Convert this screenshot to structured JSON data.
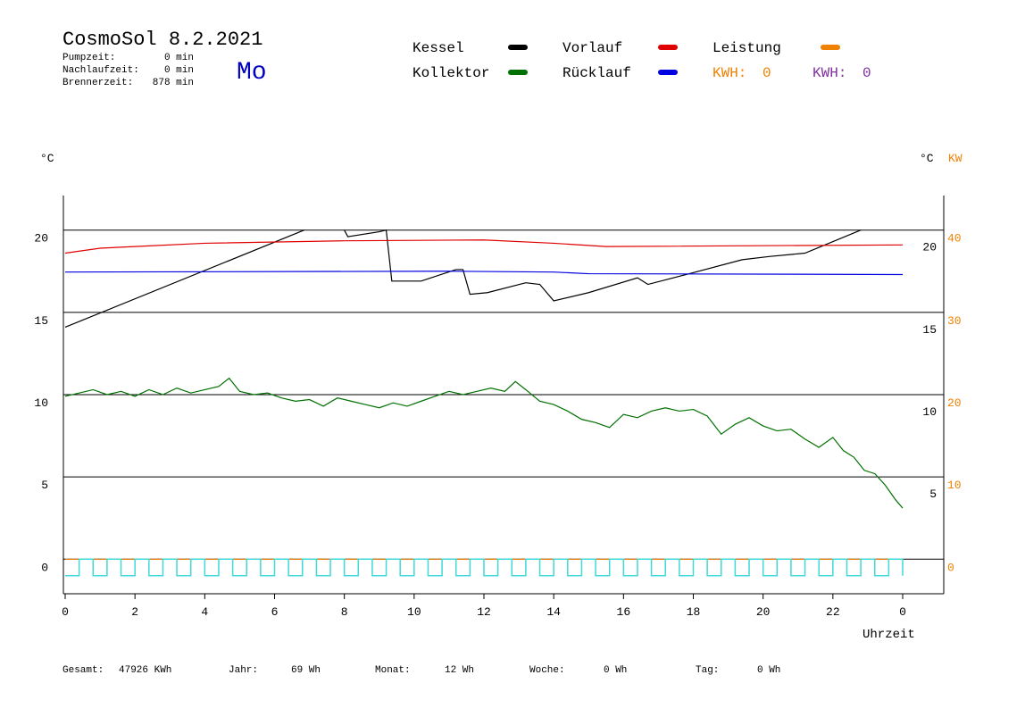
{
  "header": {
    "title": "CosmoSol 8.2.2021",
    "stats": [
      {
        "label": "Pumpzeit:",
        "value": "0 min"
      },
      {
        "label": "Nachlaufzeit:",
        "value": "0 min"
      },
      {
        "label": "Brennerzeit:",
        "value": "878 min"
      }
    ],
    "weekday": "Mo",
    "kwh": [
      {
        "label": "KWH:",
        "value": 0,
        "color": "#f08000"
      },
      {
        "label": "KWH:",
        "value": 0,
        "color": "#8030a0"
      }
    ]
  },
  "chart_data": {
    "type": "line",
    "y_label": "°C",
    "y2_label_unit": "°C",
    "y2_label": "KW",
    "x_label": "Uhrzeit",
    "xlim": [
      0,
      24
    ],
    "xticks": [
      0,
      2,
      4,
      6,
      8,
      10,
      12,
      14,
      16,
      18,
      20,
      22,
      {
        "value": 24,
        "label": "0"
      }
    ],
    "ylim": [
      -2.1,
      22.1
    ],
    "yticks": [
      0,
      5,
      10,
      15,
      20
    ],
    "yticks_right": [
      20,
      15,
      10,
      5
    ],
    "y2lim": [
      -4.2,
      44.2
    ],
    "y2ticks": [
      0,
      10,
      20,
      30,
      40
    ],
    "y2color": "#f08000",
    "grid": true,
    "series": [
      {
        "name": "Kessel",
        "color": "#000000",
        "x": [
          0,
          6.85,
          7.5,
          8,
          8.1,
          9,
          9.2,
          9.36,
          10.2,
          11.2,
          11.4,
          11.6,
          12.1,
          13.2,
          13.6,
          14,
          15,
          16.4,
          16.7,
          17.8,
          19.4,
          20.2,
          21.2,
          22.8
        ],
        "values": [
          14.1,
          20,
          null,
          20,
          19.6,
          19.9,
          20,
          16.9,
          16.9,
          17.6,
          17.6,
          16.1,
          16.2,
          16.8,
          16.7,
          15.7,
          16.2,
          17.1,
          16.7,
          17.3,
          18.2,
          18.4,
          18.6,
          20
        ]
      },
      {
        "name": "Kollektor",
        "color": "#007000",
        "x": [
          0,
          0.4,
          0.8,
          1.2,
          1.6,
          2,
          2.4,
          2.8,
          3.2,
          3.6,
          4,
          4.4,
          4.7,
          5,
          5.4,
          5.8,
          6.2,
          6.6,
          7,
          7.4,
          7.8,
          8.2,
          8.6,
          9,
          9.4,
          9.8,
          10.2,
          10.6,
          11,
          11.4,
          11.8,
          12.2,
          12.6,
          12.9,
          13.2,
          13.6,
          14,
          14.4,
          14.8,
          15.2,
          15.6,
          16,
          16.4,
          16.8,
          17.2,
          17.6,
          18,
          18.4,
          18.8,
          19.2,
          19.6,
          20,
          20.4,
          20.8,
          21.2,
          21.6,
          22,
          22.3,
          22.6,
          22.9,
          23.2,
          23.5,
          23.8,
          24
        ],
        "values": [
          9.9,
          10.1,
          10.3,
          10.0,
          10.2,
          9.9,
          10.3,
          10.0,
          10.4,
          10.1,
          10.3,
          10.5,
          11.0,
          10.2,
          10.0,
          10.1,
          9.8,
          9.6,
          9.7,
          9.3,
          9.8,
          9.6,
          9.4,
          9.2,
          9.5,
          9.3,
          9.6,
          9.9,
          10.2,
          10.0,
          10.2,
          10.4,
          10.2,
          10.8,
          10.3,
          9.6,
          9.4,
          9.0,
          8.5,
          8.3,
          8.0,
          8.8,
          8.6,
          9.0,
          9.2,
          9.0,
          9.1,
          8.7,
          7.6,
          8.2,
          8.6,
          8.1,
          7.8,
          7.9,
          7.3,
          6.8,
          7.4,
          6.6,
          6.2,
          5.4,
          5.2,
          4.5,
          3.6,
          3.1
        ]
      },
      {
        "name": "Vorlauf",
        "color": "#e00000",
        "x": [
          0,
          1,
          2,
          4,
          8,
          12,
          14,
          15.5,
          24
        ],
        "values": [
          18.6,
          18.9,
          19.0,
          19.2,
          19.35,
          19.4,
          19.2,
          19.0,
          19.1
        ]
      },
      {
        "name": "Rücklauf",
        "color": "#0000e0",
        "x": [
          0,
          11,
          14,
          15,
          24
        ],
        "values": [
          17.45,
          17.5,
          17.45,
          17.35,
          17.3
        ]
      },
      {
        "name": "Leistung",
        "color": "#f08000",
        "axis": "y2",
        "x": [
          0,
          24
        ],
        "values": [
          0,
          0
        ]
      },
      {
        "color": "#40d8d8",
        "step": true,
        "x": [
          0,
          0.4,
          0.8,
          1.2,
          1.6,
          2,
          2.4,
          2.8,
          3.2,
          3.6,
          4,
          4.4,
          4.8,
          5.2,
          5.6,
          6,
          6.4,
          6.8,
          7.2,
          7.6,
          8,
          8.4,
          8.8,
          9.2,
          9.6,
          10,
          10.4,
          10.8,
          11.2,
          11.6,
          12,
          12.4,
          12.8,
          13.2,
          13.6,
          14,
          14.4,
          14.8,
          15.2,
          15.6,
          16,
          16.4,
          16.8,
          17.2,
          17.6,
          18,
          18.4,
          18.8,
          19.2,
          19.6,
          20,
          20.4,
          20.8,
          21.2,
          21.6,
          22,
          22.4,
          22.8,
          23.2,
          23.6,
          24
        ],
        "values": [
          -1,
          0,
          -1,
          0,
          -1,
          0,
          -1,
          0,
          -1,
          0,
          -1,
          0,
          -1,
          0,
          -1,
          0,
          -1,
          0,
          -1,
          0,
          -1,
          0,
          -1,
          0,
          -1,
          0,
          -1,
          0,
          -1,
          0,
          -1,
          0,
          -1,
          0,
          -1,
          0,
          -1,
          0,
          -1,
          0,
          -1,
          0,
          -1,
          0,
          -1,
          0,
          -1,
          0,
          -1,
          0,
          -1,
          0,
          -1,
          0,
          -1,
          0,
          -1,
          0,
          -1,
          0,
          -1
        ]
      }
    ]
  },
  "footer": {
    "totals": [
      {
        "label": "Gesamt:",
        "value": "47926 KWh"
      },
      {
        "label": "Jahr:",
        "value": "69 Wh"
      },
      {
        "label": "Monat:",
        "value": "12 Wh"
      },
      {
        "label": "Woche:",
        "value": "0 Wh"
      },
      {
        "label": "Tag:",
        "value": "0 Wh"
      }
    ]
  }
}
